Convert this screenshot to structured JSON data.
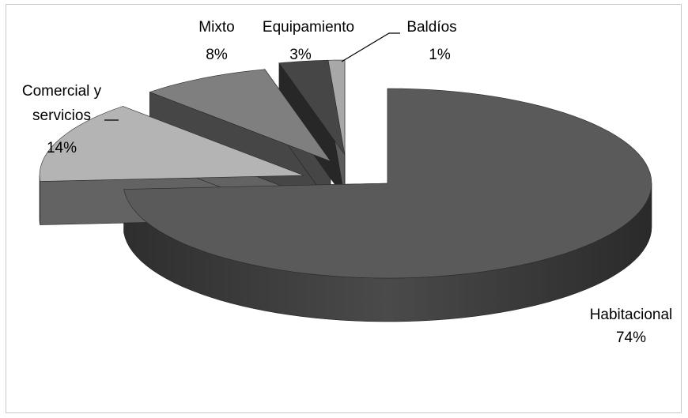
{
  "chart_data": {
    "type": "pie",
    "title": "",
    "style": "3d-exploded",
    "series": [
      {
        "slices": [
          {
            "category": "Habitacional",
            "value": 74,
            "label": "74%",
            "color": "#5a5a5a"
          },
          {
            "category": "Comercial y servicios",
            "value": 14,
            "label": "14%",
            "color": "#b4b4b4"
          },
          {
            "category": "Mixto",
            "value": 8,
            "label": "8%",
            "color": "#7f7f7f"
          },
          {
            "category": "Equipamiento",
            "value": 3,
            "label": "3%",
            "color": "#464646"
          },
          {
            "category": "Baldíos",
            "value": 1,
            "label": "1%",
            "color": "#a8a8a8"
          }
        ]
      }
    ],
    "label_lines": {
      "comercial_1": "Comercial y",
      "comercial_2": "servicios"
    },
    "legend": "none"
  }
}
